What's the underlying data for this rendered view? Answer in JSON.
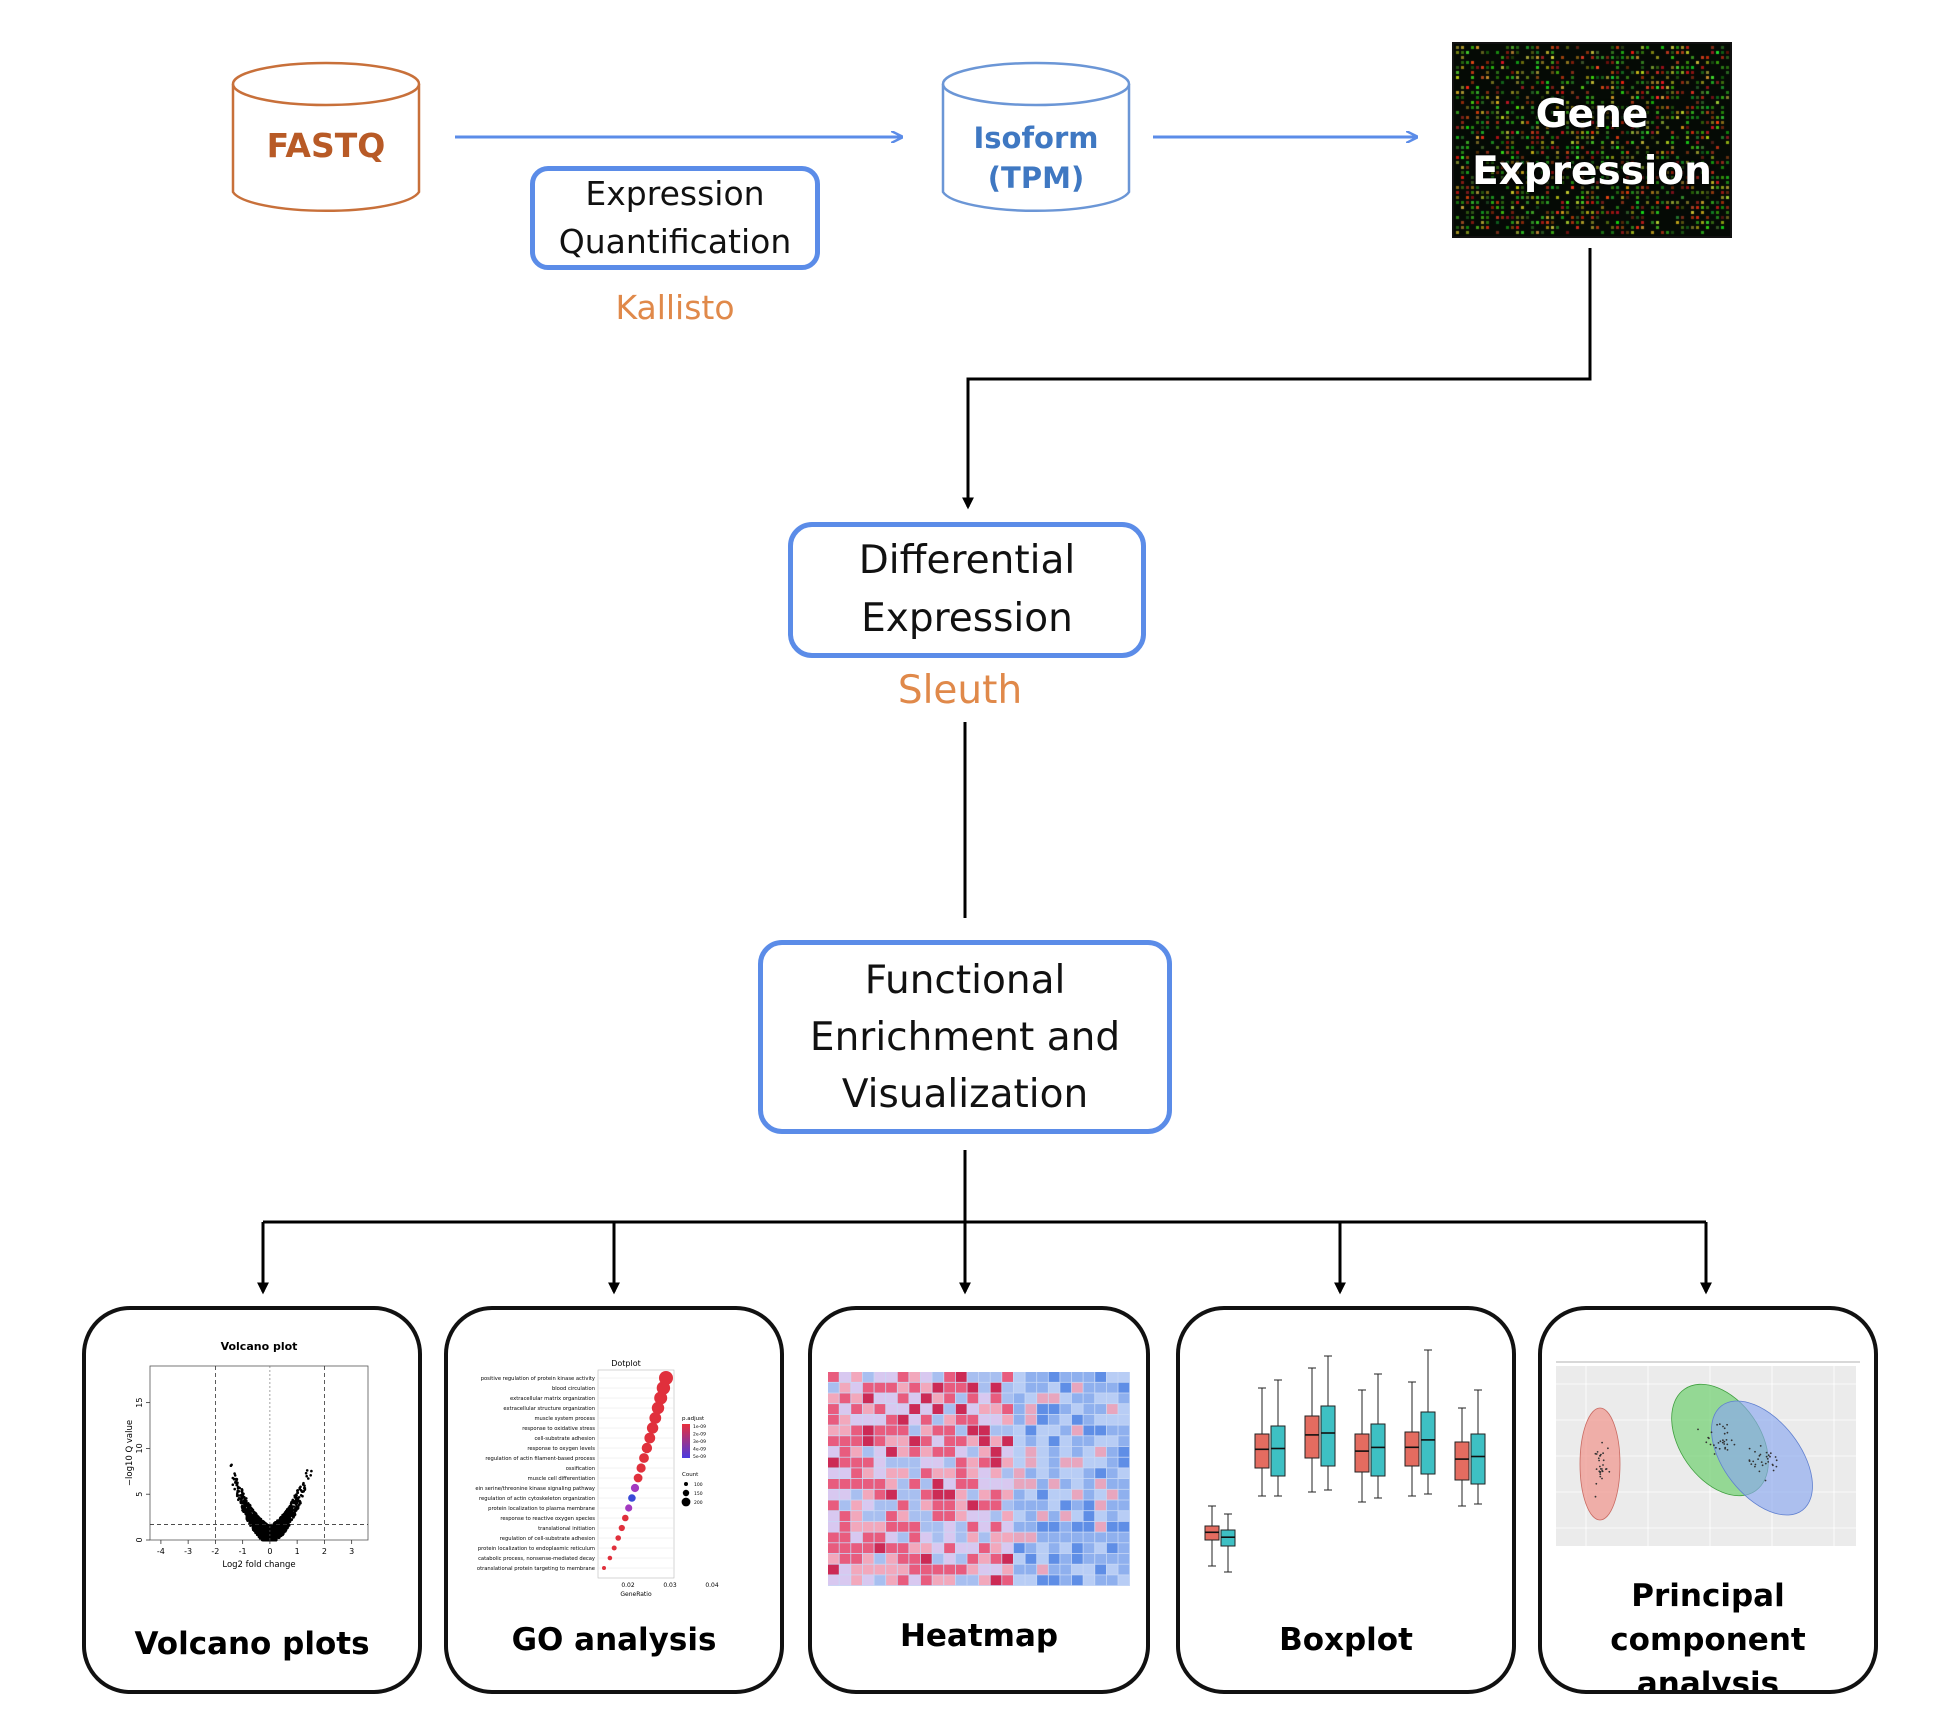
{
  "inputs": {
    "fastq": "FASTQ",
    "isoform": [
      "Isoform",
      "(TPM)"
    ]
  },
  "steps": {
    "quantification": {
      "lines": [
        "Expression",
        "Quantification"
      ],
      "tool": "Kallisto"
    },
    "gene_expression": {
      "lines": [
        "Gene",
        "Expression"
      ]
    },
    "differential": {
      "lines": [
        "Differential",
        "Expression"
      ],
      "tool": "Sleuth"
    },
    "functional": {
      "lines": [
        "Functional",
        "Enrichment and",
        "Visualization"
      ]
    }
  },
  "outputs": [
    {
      "title": [
        "Volcano plots"
      ]
    },
    {
      "title": [
        "GO analysis"
      ]
    },
    {
      "title": [
        "Heatmap"
      ]
    },
    {
      "title": [
        "Boxplot"
      ]
    },
    {
      "title": [
        "Principal",
        "component analysis"
      ]
    }
  ],
  "thumbnails": {
    "volcano": {
      "title": "Volcano plot",
      "ylabel": "−log10 Q value",
      "xlabel": "Log2 fold change",
      "xticks": [
        "-4",
        "-3",
        "-2",
        "-1",
        "0",
        "1",
        "2",
        "3"
      ],
      "yticks": [
        "0",
        "5",
        "10",
        "15"
      ]
    },
    "go": {
      "title": "Dotplot",
      "xlabel": "GeneRatio",
      "xticks": [
        "0.02",
        "0.03",
        "0.04"
      ],
      "legend_title": "p.adjust",
      "legend_values": [
        "1e-09",
        "2e-09",
        "3e-09",
        "4e-09",
        "5e-09"
      ],
      "count_title": "Count",
      "count_values": [
        "100",
        "150",
        "200"
      ],
      "terms": [
        "positive regulation of protein kinase activity",
        "blood circulation",
        "extracellular matrix organization",
        "extracellular structure organization",
        "muscle system process",
        "response to oxidative stress",
        "cell-substrate adhesion",
        "response to oxygen levels",
        "regulation of actin filament-based process",
        "ossification",
        "muscle cell differentiation",
        "ein serine/threonine kinase signaling pathway",
        "regulation of actin cytoskeleton organization",
        "protein localization to plasma membrane",
        "response to reactive oxygen species",
        "translational initiation",
        "regulation of cell-substrate adhesion",
        "protein localization to endoplasmic reticulum",
        "catabolic process, nonsense-mediated decay",
        "otranslational protein targeting to membrane"
      ]
    }
  },
  "colors": {
    "accent_blue": "#5b8ce8",
    "tool_orange": "#e0894a",
    "fastq_brown": "#b85a26",
    "isoform_blue": "#3f78c2"
  }
}
